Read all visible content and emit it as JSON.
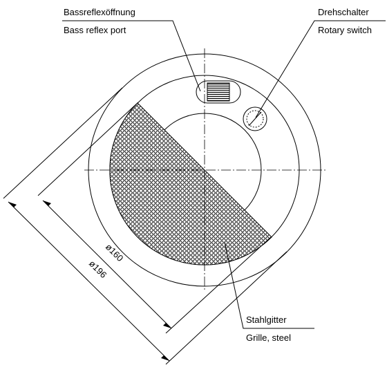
{
  "labels": {
    "port": {
      "de": "Bassreflexöffnung",
      "en": "Bass reflex port"
    },
    "switch": {
      "de": "Drehschalter",
      "en": "Rotary switch"
    },
    "grille": {
      "de": "Stahlgitter",
      "en": "Grille, steel"
    },
    "dims": {
      "inner": "ø160",
      "outer": "ø196"
    }
  }
}
